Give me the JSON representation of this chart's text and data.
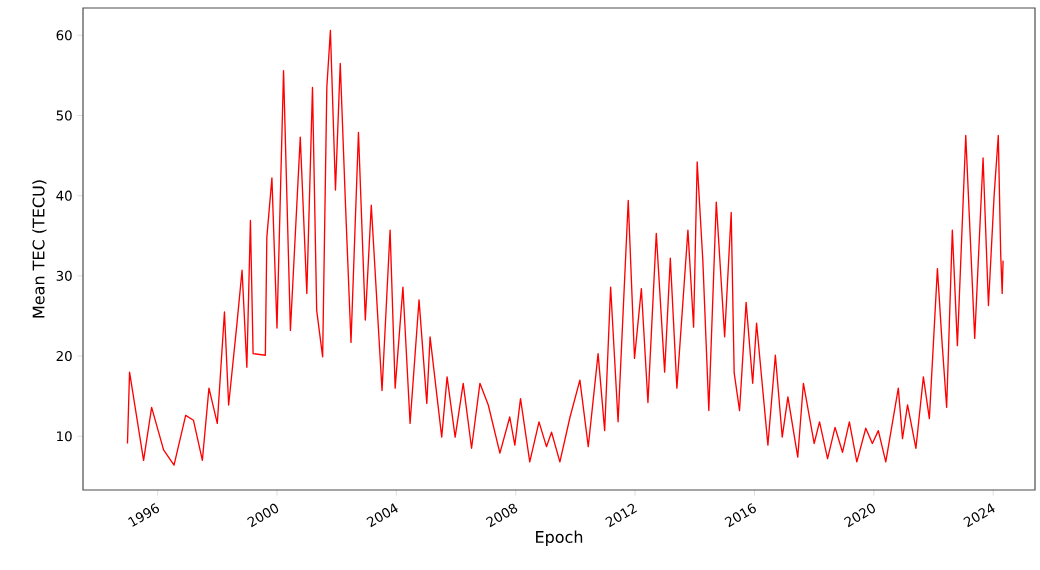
{
  "chart_data": {
    "type": "line",
    "xlabel": "Epoch",
    "ylabel": "Mean TEC (TECU)",
    "color": "#ff0000",
    "xlim": [
      1993.5,
      2025.4
    ],
    "ylim": [
      3.3,
      63.4
    ],
    "xticks": [
      1996,
      2000,
      2004,
      2008,
      2012,
      2016,
      2020,
      2024
    ],
    "yticks": [
      10,
      20,
      30,
      40,
      50,
      60
    ],
    "x": [
      1994.99,
      1995.06,
      1995.53,
      1995.8,
      1996.2,
      1996.55,
      1996.94,
      1997.2,
      1997.5,
      1997.72,
      1998.0,
      1998.24,
      1998.38,
      1998.66,
      1998.83,
      1998.99,
      1999.11,
      1999.2,
      1999.61,
      1999.66,
      1999.83,
      2000.0,
      2000.22,
      2000.45,
      2000.78,
      2001.0,
      2001.19,
      2001.33,
      2001.53,
      2001.67,
      2001.79,
      2001.96,
      2002.12,
      2002.29,
      2002.48,
      2002.73,
      2002.96,
      2003.16,
      2003.52,
      2003.79,
      2003.96,
      2004.22,
      2004.46,
      2004.76,
      2005.02,
      2005.13,
      2005.52,
      2005.7,
      2005.97,
      2006.24,
      2006.52,
      2006.8,
      2007.08,
      2007.47,
      2007.8,
      2007.97,
      2008.16,
      2008.47,
      2008.78,
      2009.03,
      2009.2,
      2009.48,
      2009.82,
      2010.15,
      2010.43,
      2010.76,
      2010.98,
      2011.18,
      2011.43,
      2011.77,
      2011.98,
      2012.21,
      2012.43,
      2012.71,
      2012.99,
      2013.18,
      2013.4,
      2013.77,
      2013.96,
      2014.08,
      2014.27,
      2014.47,
      2014.72,
      2015.0,
      2015.22,
      2015.32,
      2015.5,
      2015.72,
      2015.94,
      2016.07,
      2016.45,
      2016.7,
      2016.93,
      2017.12,
      2017.45,
      2017.64,
      2018.0,
      2018.18,
      2018.45,
      2018.7,
      2018.95,
      2019.18,
      2019.43,
      2019.73,
      2019.95,
      2020.15,
      2020.4,
      2020.82,
      2020.96,
      2021.13,
      2021.41,
      2021.66,
      2021.86,
      2022.13,
      2022.28,
      2022.44,
      2022.63,
      2022.8,
      2023.08,
      2023.38,
      2023.66,
      2023.84,
      2024.03,
      2024.17,
      2024.25,
      2024.3,
      2024.33
    ],
    "values": [
      9.1,
      18.0,
      7.0,
      13.6,
      8.3,
      6.4,
      12.6,
      12.0,
      7.0,
      16.0,
      11.6,
      25.5,
      13.9,
      24.1,
      30.7,
      18.6,
      36.9,
      20.3,
      20.1,
      34.8,
      42.2,
      23.5,
      55.6,
      23.2,
      47.3,
      27.8,
      53.5,
      25.7,
      19.9,
      53.5,
      60.6,
      40.7,
      56.5,
      39.4,
      21.7,
      47.9,
      24.5,
      38.8,
      15.7,
      35.7,
      16.0,
      28.6,
      11.6,
      27.0,
      14.1,
      22.4,
      9.9,
      17.4,
      9.9,
      16.6,
      8.5,
      16.6,
      13.9,
      7.9,
      12.4,
      8.9,
      14.7,
      6.8,
      11.8,
      8.7,
      10.5,
      6.8,
      12.4,
      17.0,
      8.7,
      20.3,
      10.7,
      28.6,
      11.8,
      39.4,
      19.7,
      28.4,
      14.2,
      35.3,
      18.0,
      32.2,
      16.0,
      35.7,
      23.6,
      44.2,
      31.9,
      13.2,
      39.2,
      22.4,
      37.9,
      17.9,
      13.2,
      26.7,
      16.6,
      24.1,
      8.9,
      20.1,
      9.9,
      14.9,
      7.4,
      16.6,
      9.1,
      11.8,
      7.2,
      11.1,
      8.0,
      11.8,
      6.8,
      11.0,
      9.1,
      10.7,
      6.8,
      16.0,
      9.7,
      13.9,
      8.5,
      17.4,
      12.2,
      30.9,
      22.0,
      13.6,
      35.7,
      21.3,
      47.5,
      22.2,
      44.7,
      26.3,
      40.0,
      47.5,
      32.8,
      27.8,
      31.9
    ]
  }
}
